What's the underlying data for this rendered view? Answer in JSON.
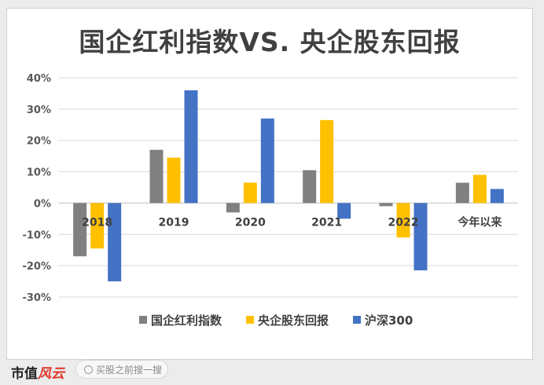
{
  "chart_data": {
    "type": "bar",
    "title": "国企红利指数VS. 央企股东回报",
    "categories": [
      "2018",
      "2019",
      "2020",
      "2021",
      "2022",
      "今年以来"
    ],
    "series": [
      {
        "name": "国企红利指数",
        "color": "#808080",
        "values": [
          -17,
          17,
          -3,
          10.5,
          -1,
          6.5
        ]
      },
      {
        "name": "央企股东回报",
        "color": "#ffc000",
        "values": [
          -14.5,
          14.5,
          6.5,
          26.5,
          -11,
          9
        ]
      },
      {
        "name": "沪深300",
        "color": "#4472c4",
        "values": [
          -25,
          36,
          27,
          -5,
          -21.5,
          4.5
        ]
      }
    ],
    "yticks": [
      "40%",
      "30%",
      "20%",
      "10%",
      "0%",
      "-10%",
      "-20%",
      "-30%"
    ],
    "ylim": [
      -30,
      40
    ],
    "grid": true,
    "legend": "bottom"
  },
  "footer": {
    "brand_text": "市值",
    "brand_accent": "风云",
    "search_placeholder": "买股之前搜一搜"
  }
}
